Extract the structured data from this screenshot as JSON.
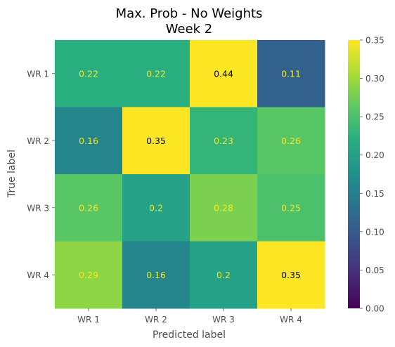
{
  "chart_data": {
    "type": "heatmap",
    "title": [
      "Max. Prob - No Weights",
      "Week 2"
    ],
    "xlabel": "Predicted label",
    "ylabel": "True label",
    "x_categories": [
      "WR 1",
      "WR 2",
      "WR 3",
      "WR 4"
    ],
    "y_categories": [
      "WR 1",
      "WR 2",
      "WR 3",
      "WR 4"
    ],
    "values": [
      [
        0.22,
        0.22,
        0.44,
        0.11
      ],
      [
        0.16,
        0.35,
        0.23,
        0.26
      ],
      [
        0.26,
        0.2,
        0.28,
        0.25
      ],
      [
        0.29,
        0.16,
        0.2,
        0.35
      ]
    ],
    "labels": [
      [
        "0.22",
        "0.22",
        "0.44",
        "0.11"
      ],
      [
        "0.16",
        "0.35",
        "0.23",
        "0.26"
      ],
      [
        "0.26",
        "0.2",
        "0.28",
        "0.25"
      ],
      [
        "0.29",
        "0.16",
        "0.2",
        "0.35"
      ]
    ],
    "colormap": "viridis",
    "vmin": 0,
    "vmax": 0.35,
    "colorbar_ticks": [
      0,
      0.05,
      0.1,
      0.15,
      0.2,
      0.25,
      0.3,
      0.35
    ],
    "colorbar_tick_labels": [
      "0.00",
      "0.05",
      "0.10",
      "0.15",
      "0.20",
      "0.25",
      "0.30",
      "0.35"
    ],
    "label_color_dark": "#000000",
    "label_color_light": "#f5e61f",
    "grid": false,
    "colorbar_position": "right"
  }
}
